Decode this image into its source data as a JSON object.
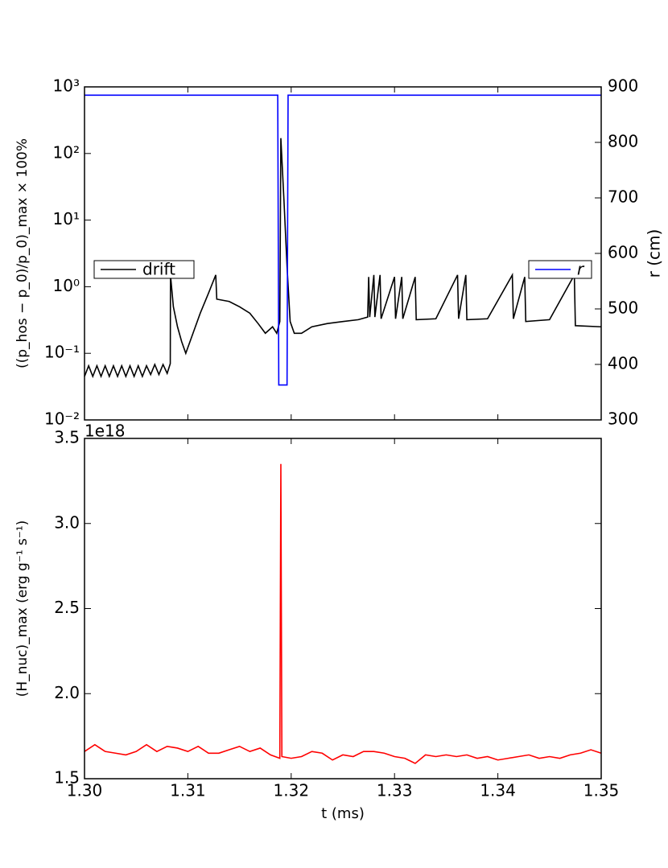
{
  "chart_data": [
    {
      "type": "line",
      "y_label": "((p_hos − p_0)/p_0)_max × 100%",
      "y2_label": "r (cm)",
      "xlim": [
        1.3,
        1.35
      ],
      "xticks": [
        1.3,
        1.31,
        1.32,
        1.33,
        1.34,
        1.35
      ],
      "ylim": [
        0.01,
        1000
      ],
      "log_y": true,
      "yticks": [
        {
          "value": 0.01,
          "label": "10⁻²"
        },
        {
          "value": 0.1,
          "label": "10⁻¹"
        },
        {
          "value": 1,
          "label": "10⁰"
        },
        {
          "value": 10,
          "label": "10¹"
        },
        {
          "value": 100,
          "label": "10²"
        },
        {
          "value": 1000,
          "label": "10³"
        }
      ],
      "y2lim": [
        300,
        900
      ],
      "y2ticks": [
        300,
        400,
        500,
        600,
        700,
        800,
        900
      ],
      "series": [
        {
          "name": "drift",
          "color": "#000000",
          "legend": "center left",
          "x": [
            1.3,
            1.3004,
            1.3008,
            1.3012,
            1.3016,
            1.302,
            1.3024,
            1.3028,
            1.3032,
            1.3036,
            1.304,
            1.3044,
            1.3048,
            1.3052,
            1.3056,
            1.306,
            1.3064,
            1.3068,
            1.3072,
            1.3076,
            1.308,
            1.3083,
            1.30832,
            1.3086,
            1.309,
            1.3094,
            1.3098,
            1.3105,
            1.3112,
            1.312,
            1.3127,
            1.3128,
            1.314,
            1.315,
            1.316,
            1.3168,
            1.3175,
            1.3182,
            1.3186,
            1.3189,
            1.319,
            1.3193,
            1.3196,
            1.3199,
            1.3203,
            1.321,
            1.322,
            1.3235,
            1.325,
            1.3265,
            1.3274,
            1.3275,
            1.3276,
            1.328,
            1.3281,
            1.3286,
            1.3287,
            1.33,
            1.3301,
            1.3307,
            1.3308,
            1.332,
            1.3321,
            1.334,
            1.3361,
            1.3362,
            1.3369,
            1.337,
            1.339,
            1.3414,
            1.3415,
            1.3426,
            1.3427,
            1.345,
            1.3474,
            1.3475,
            1.35
          ],
          "values": [
            0.045,
            0.065,
            0.045,
            0.065,
            0.045,
            0.065,
            0.045,
            0.065,
            0.045,
            0.065,
            0.045,
            0.065,
            0.045,
            0.065,
            0.045,
            0.065,
            0.048,
            0.068,
            0.048,
            0.068,
            0.05,
            0.07,
            1.5,
            0.5,
            0.25,
            0.15,
            0.1,
            0.2,
            0.4,
            0.8,
            1.5,
            0.65,
            0.6,
            0.5,
            0.4,
            0.28,
            0.2,
            0.25,
            0.2,
            0.3,
            170,
            20,
            2,
            0.3,
            0.2,
            0.2,
            0.25,
            0.28,
            0.3,
            0.32,
            0.35,
            1.4,
            0.35,
            1.5,
            0.35,
            1.5,
            0.33,
            1.4,
            0.33,
            1.4,
            0.33,
            1.4,
            0.32,
            0.33,
            1.5,
            0.33,
            1.5,
            0.32,
            0.33,
            1.5,
            0.33,
            1.4,
            0.3,
            0.32,
            1.5,
            0.26,
            0.25
          ]
        },
        {
          "name": "r",
          "color": "#0000ff",
          "axis": "y2",
          "legend": "center right",
          "x": [
            1.3,
            1.3187,
            1.3188,
            1.3196,
            1.3197,
            1.35
          ],
          "values": [
            885,
            885,
            363,
            363,
            885,
            885
          ]
        }
      ]
    },
    {
      "type": "line",
      "y_label": "(H_nuc)_max (erg g⁻¹ s⁻¹)",
      "offset_label": "1e18",
      "x_label": "t (ms)",
      "xlim": [
        1.3,
        1.35
      ],
      "xticks": [
        {
          "value": 1.3,
          "label": "1.30"
        },
        1.31,
        1.32,
        1.33,
        1.34,
        1.35
      ],
      "ylim": [
        1.5,
        3.5
      ],
      "yticks": [
        1.5,
        {
          "value": 2.0,
          "label": "2.0"
        },
        2.5,
        {
          "value": 3.0,
          "label": "3.0"
        },
        3.5
      ],
      "series": [
        {
          "color": "#ff0000",
          "x": [
            1.3,
            1.301,
            1.302,
            1.303,
            1.304,
            1.305,
            1.306,
            1.307,
            1.308,
            1.309,
            1.31,
            1.311,
            1.312,
            1.313,
            1.314,
            1.315,
            1.316,
            1.317,
            1.318,
            1.3189,
            1.319,
            1.3191,
            1.32,
            1.321,
            1.322,
            1.323,
            1.324,
            1.325,
            1.326,
            1.327,
            1.328,
            1.329,
            1.33,
            1.331,
            1.332,
            1.333,
            1.334,
            1.335,
            1.336,
            1.337,
            1.338,
            1.339,
            1.34,
            1.341,
            1.342,
            1.343,
            1.344,
            1.345,
            1.346,
            1.347,
            1.348,
            1.349,
            1.35
          ],
          "values": [
            1.66,
            1.7,
            1.66,
            1.65,
            1.64,
            1.66,
            1.7,
            1.66,
            1.69,
            1.68,
            1.66,
            1.69,
            1.65,
            1.65,
            1.67,
            1.69,
            1.66,
            1.68,
            1.64,
            1.62,
            3.35,
            1.63,
            1.62,
            1.63,
            1.66,
            1.65,
            1.61,
            1.64,
            1.63,
            1.66,
            1.66,
            1.65,
            1.63,
            1.62,
            1.59,
            1.64,
            1.63,
            1.64,
            1.63,
            1.64,
            1.62,
            1.63,
            1.61,
            1.62,
            1.63,
            1.64,
            1.62,
            1.63,
            1.62,
            1.64,
            1.65,
            1.67,
            1.65
          ]
        }
      ]
    }
  ]
}
